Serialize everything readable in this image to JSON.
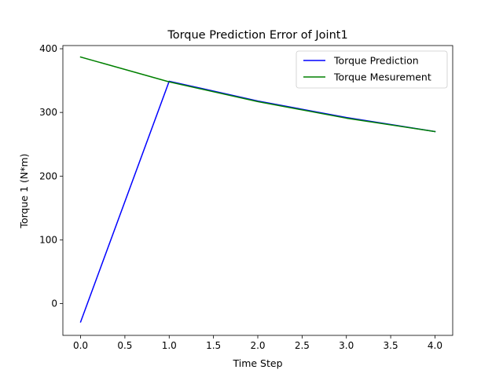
{
  "chart_data": {
    "type": "line",
    "title": "Torque Prediction Error of Joint1",
    "xlabel": "Time Step",
    "ylabel": "Torque 1 (N*m)",
    "xlim": [
      -0.2,
      4.2
    ],
    "ylim": [
      -50,
      405
    ],
    "xticks": [
      0,
      0.5,
      1,
      1.5,
      2,
      2.5,
      3,
      3.5,
      4
    ],
    "xtick_labels": [
      "0.0",
      "0.5",
      "1.0",
      "1.5",
      "2.0",
      "2.5",
      "3.0",
      "3.5",
      "4.0"
    ],
    "yticks": [
      0,
      100,
      200,
      300,
      400
    ],
    "ytick_labels": [
      "0",
      "100",
      "200",
      "300",
      "400"
    ],
    "grid": false,
    "legend_position": "top-right",
    "x": [
      0,
      1,
      2,
      3,
      4
    ],
    "series": [
      {
        "name": "Torque Prediction",
        "color": "#0000ff",
        "values": [
          -29,
          349,
          318,
          292,
          270
        ]
      },
      {
        "name": "Torque Mesurement",
        "color": "#008000",
        "values": [
          387,
          348,
          317,
          291,
          270
        ]
      }
    ]
  }
}
